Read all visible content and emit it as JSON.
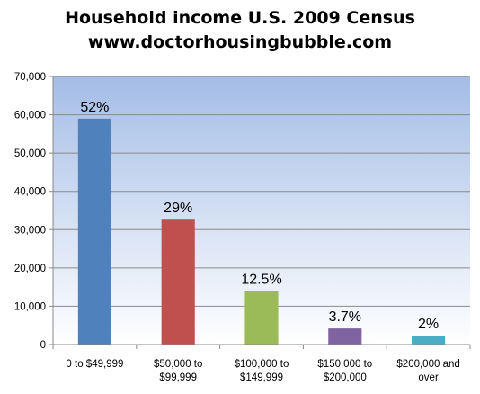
{
  "chart_data": {
    "type": "bar",
    "title": "Household income U.S. 2009 Census",
    "subtitle": "www.doctorhousingbubble.com",
    "categories": [
      [
        "0 to $49,999"
      ],
      [
        "$50,000 to",
        "$99,999"
      ],
      [
        "$100,000 to",
        "$149,999"
      ],
      [
        "$150,000 to",
        "$200,000"
      ],
      [
        "$200,000 and",
        "over"
      ]
    ],
    "values": [
      59000,
      32600,
      14000,
      4200,
      2300
    ],
    "data_labels": [
      "52%",
      "29%",
      "12.5%",
      "3.7%",
      "2%"
    ],
    "colors": [
      "#4f81bd",
      "#c0504d",
      "#9bbb59",
      "#8064a2",
      "#4bacc6"
    ],
    "ylim": [
      0,
      70000
    ],
    "yticks": [
      "0",
      "10,000",
      "20,000",
      "30,000",
      "40,000",
      "50,000",
      "60,000",
      "70,000"
    ],
    "grid": true,
    "legend": "none",
    "background_gradient": [
      "#a4bde6",
      "#ffffff"
    ]
  }
}
